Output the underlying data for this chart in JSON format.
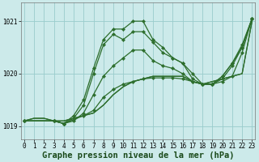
{
  "background_color": "#cceaea",
  "grid_color": "#99cccc",
  "line_color": "#2d6e2d",
  "marker_color": "#2d6e2d",
  "xlabel": "Graphe pression niveau de la mer (hPa)",
  "ylabel_ticks": [
    1019,
    1020,
    1021
  ],
  "xticks": [
    0,
    1,
    2,
    3,
    4,
    5,
    6,
    7,
    8,
    9,
    10,
    11,
    12,
    13,
    14,
    15,
    16,
    17,
    18,
    19,
    20,
    21,
    22,
    23
  ],
  "xlim": [
    -0.3,
    23.3
  ],
  "ylim": [
    1018.75,
    1021.35
  ],
  "lines": [
    {
      "x": [
        0,
        1,
        2,
        3,
        4,
        5,
        6,
        7,
        8,
        9,
        10,
        11,
        12,
        13,
        14,
        15,
        16,
        17,
        18,
        19,
        20,
        21,
        22,
        23
      ],
      "y": [
        1019.1,
        1019.15,
        1019.15,
        1019.1,
        1019.1,
        1019.15,
        1019.2,
        1019.25,
        1019.4,
        1019.6,
        1019.75,
        1019.85,
        1019.9,
        1019.95,
        1019.95,
        1019.95,
        1019.95,
        1019.85,
        1019.8,
        1019.85,
        1019.9,
        1019.95,
        1020.0,
        1021.0
      ],
      "has_markers": false
    },
    {
      "x": [
        0,
        1,
        2,
        3,
        4,
        5,
        6,
        7,
        8,
        9,
        10,
        11,
        12,
        13,
        14,
        15,
        16,
        17,
        18,
        19,
        20,
        21,
        22,
        23
      ],
      "y": [
        1019.1,
        1019.15,
        1019.15,
        1019.1,
        1019.1,
        1019.15,
        1019.2,
        1019.25,
        1019.4,
        1019.6,
        1019.75,
        1019.85,
        1019.9,
        1019.95,
        1019.95,
        1019.95,
        1019.95,
        1019.85,
        1019.8,
        1019.85,
        1019.9,
        1019.95,
        1020.0,
        1021.0
      ],
      "has_markers": false
    },
    {
      "x": [
        0,
        3,
        4,
        6,
        7,
        8,
        9,
        10,
        11,
        12,
        13,
        14,
        15,
        16,
        17,
        18,
        19,
        20,
        21,
        22,
        23
      ],
      "y": [
        1019.1,
        1019.1,
        1019.05,
        1019.2,
        1019.3,
        1019.55,
        1019.7,
        1019.8,
        1019.85,
        1019.9,
        1019.92,
        1019.92,
        1019.92,
        1019.9,
        1019.85,
        1019.8,
        1019.8,
        1019.85,
        1019.95,
        1020.4,
        1021.05
      ],
      "has_markers": true
    },
    {
      "x": [
        0,
        3,
        4,
        5,
        6,
        7,
        8,
        9,
        10,
        11,
        12,
        13,
        14,
        15,
        16,
        17,
        18,
        19,
        20,
        21,
        22,
        23
      ],
      "y": [
        1019.1,
        1019.1,
        1019.05,
        1019.1,
        1019.25,
        1019.6,
        1019.95,
        1020.15,
        1020.3,
        1020.45,
        1020.45,
        1020.25,
        1020.15,
        1020.1,
        1020.0,
        1019.85,
        1019.8,
        1019.8,
        1019.9,
        1020.15,
        1020.5,
        1021.05
      ],
      "has_markers": true
    },
    {
      "x": [
        0,
        3,
        4,
        5,
        6,
        7,
        8,
        9,
        10,
        11,
        12,
        13,
        14,
        15,
        16,
        17,
        18,
        19,
        20,
        21,
        22,
        23
      ],
      "y": [
        1019.1,
        1019.1,
        1019.05,
        1019.15,
        1019.4,
        1020.0,
        1020.55,
        1020.75,
        1020.65,
        1020.8,
        1020.8,
        1020.6,
        1020.4,
        1020.3,
        1020.2,
        1019.9,
        1019.8,
        1019.8,
        1019.95,
        1020.2,
        1020.55,
        1021.05
      ],
      "has_markers": true
    },
    {
      "x": [
        0,
        3,
        4,
        5,
        6,
        7,
        8,
        9,
        10,
        11,
        12,
        13,
        14,
        15,
        16,
        17,
        18,
        19,
        20,
        21,
        22,
        23
      ],
      "y": [
        1019.1,
        1019.1,
        1019.05,
        1019.2,
        1019.5,
        1020.1,
        1020.65,
        1020.85,
        1020.85,
        1021.0,
        1021.0,
        1020.65,
        1020.5,
        1020.3,
        1020.2,
        1020.0,
        1019.8,
        1019.8,
        1019.95,
        1020.2,
        1020.5,
        1021.05
      ],
      "has_markers": true
    }
  ],
  "title_fontsize": 7.5,
  "tick_fontsize": 5.5
}
